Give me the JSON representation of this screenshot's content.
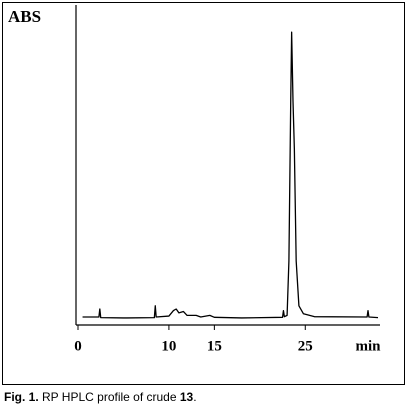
{
  "chart_data": {
    "type": "line",
    "y_label": "ABS",
    "x_label": "min",
    "caption": {
      "prefix": "Fig. 1.",
      "text": "RP HPLC profile of crude",
      "compound": "13",
      "end": "."
    },
    "xlim": [
      0,
      33
    ],
    "ylim": [
      0,
      100
    ],
    "xticks": [
      0,
      10,
      15,
      25
    ],
    "color": "#000000",
    "x": [
      0.5,
      2.3,
      2.4,
      2.5,
      5,
      8.4,
      8.5,
      8.6,
      10,
      10.5,
      10.8,
      11.1,
      11.6,
      12,
      13,
      13.5,
      14.5,
      15,
      18,
      22.5,
      22.6,
      22.7,
      23.0,
      23.2,
      23.4,
      23.5,
      23.65,
      23.8,
      24.0,
      24.3,
      24.8,
      26,
      31.8,
      31.9,
      32.0,
      33
    ],
    "values": [
      2.5,
      2.5,
      5,
      2.3,
      2.2,
      2.3,
      6,
      2.5,
      2.8,
      4.5,
      5,
      3.8,
      4.2,
      3,
      3,
      2.5,
      3,
      2.4,
      2.2,
      2.4,
      4.5,
      2.6,
      3,
      20,
      70,
      91.5,
      70,
      55,
      20,
      6,
      3.5,
      2.6,
      2.5,
      4.5,
      2.5,
      2.3
    ]
  }
}
